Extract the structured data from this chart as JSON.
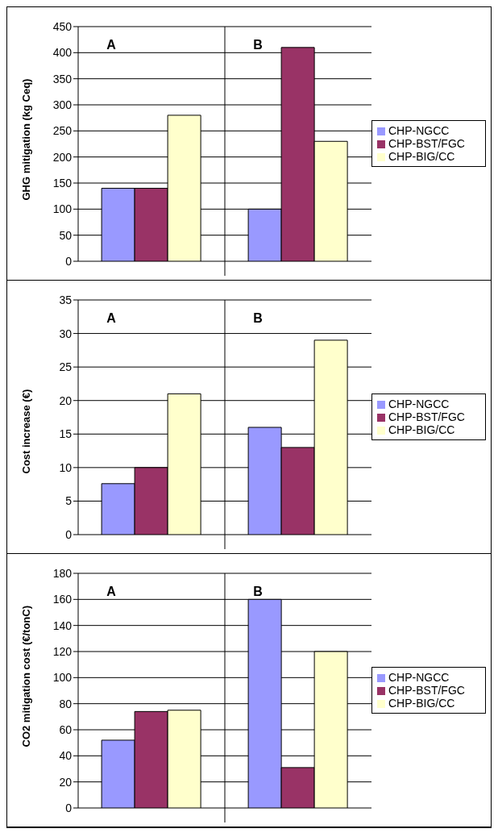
{
  "chart_data": [
    {
      "type": "bar",
      "ylabel": "GHG mitigation (kg Ceq)",
      "categories": [
        "A",
        "B"
      ],
      "series": [
        {
          "name": "CHP-NGCC",
          "color": "#9999ff",
          "values": [
            140,
            100
          ]
        },
        {
          "name": "CHP-BST/FGC",
          "color": "#993366",
          "values": [
            140,
            410
          ]
        },
        {
          "name": "CHP-BIG/CC",
          "color": "#ffffcc",
          "values": [
            280,
            230
          ]
        }
      ],
      "ylim": [
        0,
        450
      ],
      "yticks": [
        0,
        50,
        100,
        150,
        200,
        250,
        300,
        350,
        400,
        450
      ],
      "grid": "y",
      "legend": "right"
    },
    {
      "type": "bar",
      "ylabel": "Cost increase (€)",
      "categories": [
        "A",
        "B"
      ],
      "series": [
        {
          "name": "CHP-NGCC",
          "color": "#9999ff",
          "values": [
            7.6,
            16
          ]
        },
        {
          "name": "CHP-BST/FGC",
          "color": "#993366",
          "values": [
            10,
            13
          ]
        },
        {
          "name": "CHP-BIG/CC",
          "color": "#ffffcc",
          "values": [
            21,
            29
          ]
        }
      ],
      "ylim": [
        0,
        35
      ],
      "yticks": [
        0,
        5,
        10,
        15,
        20,
        25,
        30,
        35
      ],
      "grid": "y",
      "legend": "right"
    },
    {
      "type": "bar",
      "ylabel": "CO2 mitigation cost (€/tonC)",
      "categories": [
        "A",
        "B"
      ],
      "series": [
        {
          "name": "CHP-NGCC",
          "color": "#9999ff",
          "values": [
            52,
            160
          ]
        },
        {
          "name": "CHP-BST/FGC",
          "color": "#993366",
          "values": [
            74,
            31
          ]
        },
        {
          "name": "CHP-BIG/CC",
          "color": "#ffffcc",
          "values": [
            75,
            120
          ]
        }
      ],
      "ylim": [
        0,
        180
      ],
      "yticks": [
        0,
        20,
        40,
        60,
        80,
        100,
        120,
        140,
        160,
        180
      ],
      "grid": "y",
      "legend": "right"
    }
  ]
}
